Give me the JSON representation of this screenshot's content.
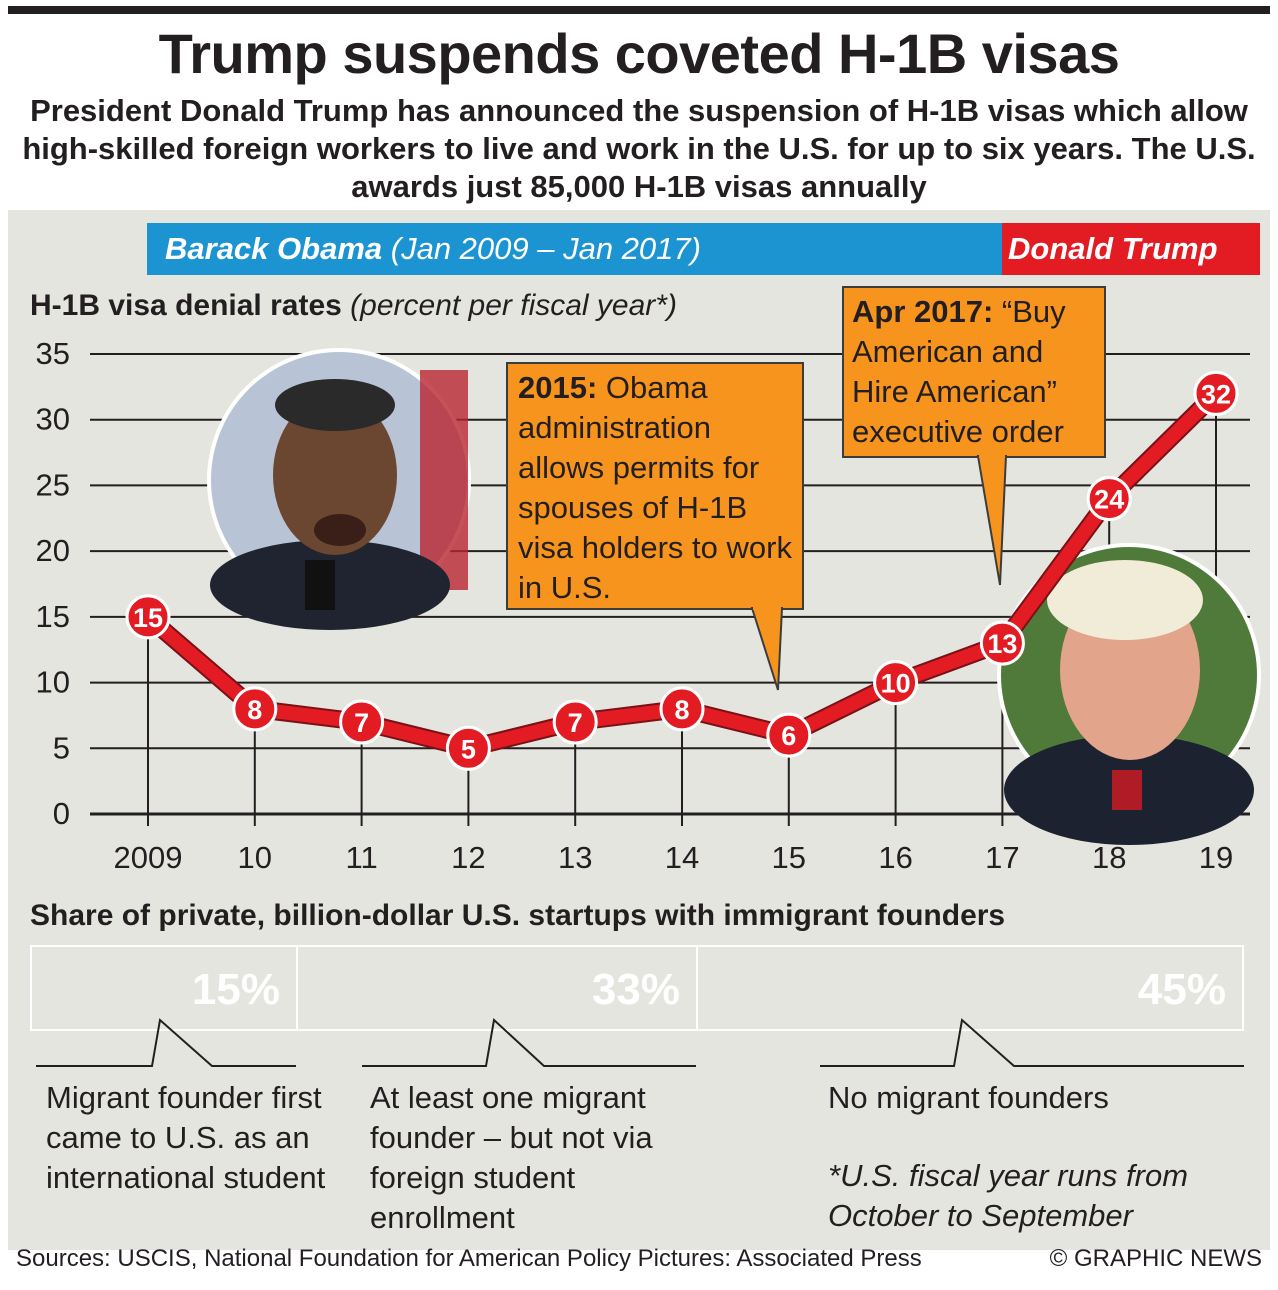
{
  "header": {
    "title": "Trump suspends coveted H-1B visas",
    "subtitle": "President Donald Trump has announced the suspension of H-1B visas which allow high-skilled foreign workers to live and work in the U.S. for up to six years. The U.S. awards just 85,000 H-1B visas annually"
  },
  "presidency": {
    "obama_name": "Barack Obama",
    "obama_term": "(Jan 2009 – Jan 2017)",
    "trump_name": "Donald Trump"
  },
  "annotations": {
    "note_2015_bold": "2015:",
    "note_2015_text": "Obama administration allows permits for spouses of H-1B visa holders to work in U.S.",
    "note_2017_bold": "Apr 2017:",
    "note_2017_text": "“Buy American and Hire American” executive order"
  },
  "share": {
    "title": "Share of private, billion-dollar U.S. startups with immigrant founders",
    "segments": [
      {
        "label": "15%",
        "value": 15,
        "color": "#1a75bb",
        "description": "Migrant founder first came to U.S. as an international student"
      },
      {
        "label": "33%",
        "value": 33,
        "color": "#00aeef",
        "description": "At least one migrant founder – but not via foreign student enrollment"
      },
      {
        "label": "45%",
        "value": 45,
        "color": "#f7941d",
        "description": "No migrant founders"
      }
    ]
  },
  "footnote": "*U.S. fiscal year runs from October to September",
  "footer": {
    "sources": "Sources: USCIS, National Foundation for American Policy  Pictures: Associated Press",
    "copyright": "© GRAPHIC NEWS"
  },
  "colors": {
    "obama_blue": "#1d94d2",
    "trump_red": "#e31b23",
    "callout_orange": "#f7941d",
    "panel_bg": "#e5e5df"
  },
  "chart_data": {
    "type": "line",
    "title": "H-1B visa denial rates",
    "subtitle": "(percent per fiscal year*)",
    "x": [
      "2009",
      "10",
      "11",
      "12",
      "13",
      "14",
      "15",
      "16",
      "17",
      "18",
      "19"
    ],
    "series": [
      {
        "values": [
          15,
          8,
          7,
          5,
          7,
          8,
          6,
          10,
          13,
          24,
          32
        ]
      }
    ],
    "yticks": [
      0,
      5,
      10,
      15,
      20,
      25,
      30,
      35
    ],
    "ylim": [
      0,
      35
    ],
    "grid": true,
    "line_color": "#e31b23"
  }
}
